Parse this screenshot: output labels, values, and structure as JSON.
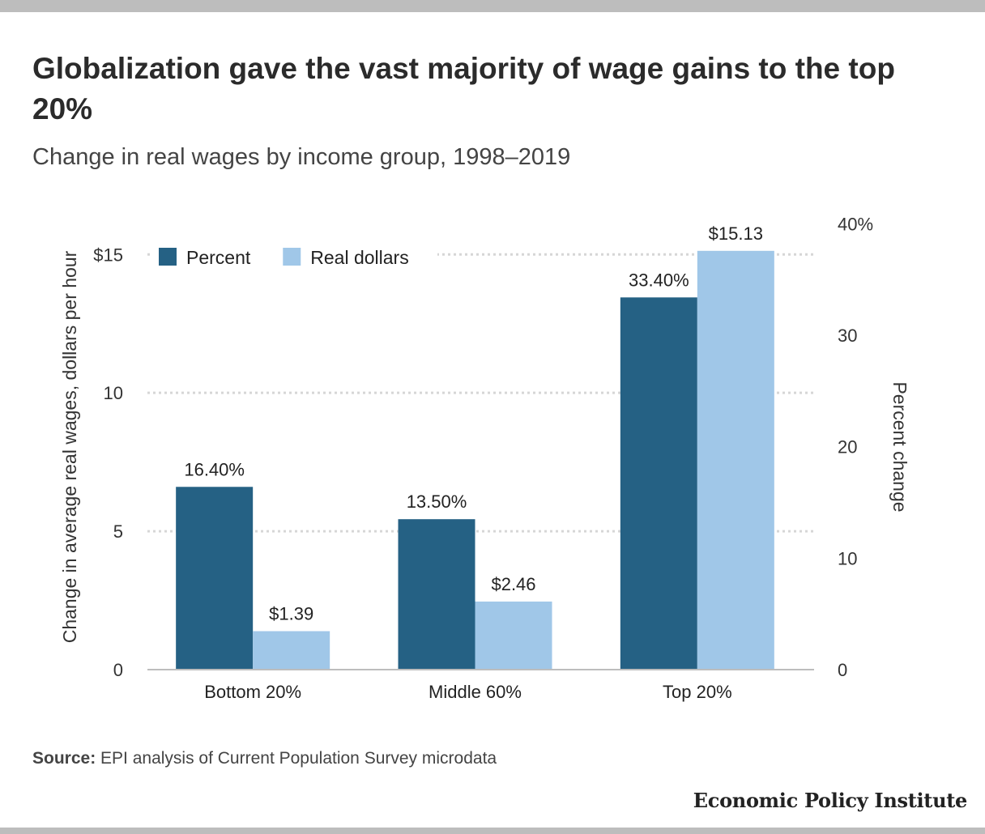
{
  "title": "Globalization gave the vast majority of wage gains to the top 20%",
  "subtitle": "Change in real wages by income group, 1998–2019",
  "source_label": "Source:",
  "source_text": " EPI analysis of Current Population Survey microdata",
  "brand": "Economic Policy Institute",
  "chart_data": {
    "type": "bar",
    "categories": [
      "Bottom 20%",
      "Middle 60%",
      "Top 20%"
    ],
    "series": [
      {
        "name": "Percent",
        "axis": "right",
        "color": "#256184",
        "values": [
          16.4,
          13.5,
          33.4
        ],
        "labels": [
          "16.40%",
          "13.50%",
          "33.40%"
        ]
      },
      {
        "name": "Real dollars",
        "axis": "left",
        "color": "#a0c7e8",
        "values": [
          1.39,
          2.46,
          15.13
        ],
        "labels": [
          "$1.39",
          "$2.46",
          "$15.13"
        ]
      }
    ],
    "ylabel": "Change in average real wages, dollars per hour",
    "ylabel_right": "Percent change",
    "ylim": [
      0,
      15.3
    ],
    "ylim_right": [
      0,
      38
    ],
    "yticks": [
      0,
      5,
      10,
      15
    ],
    "ytick_labels": [
      "0",
      "5",
      "10",
      "$15"
    ],
    "yticks_right": [
      0,
      10,
      20,
      30,
      40
    ],
    "ytick_labels_right": [
      "0",
      "10",
      "20",
      "30",
      "40%"
    ],
    "grid": true,
    "legend_position": "top-left"
  }
}
